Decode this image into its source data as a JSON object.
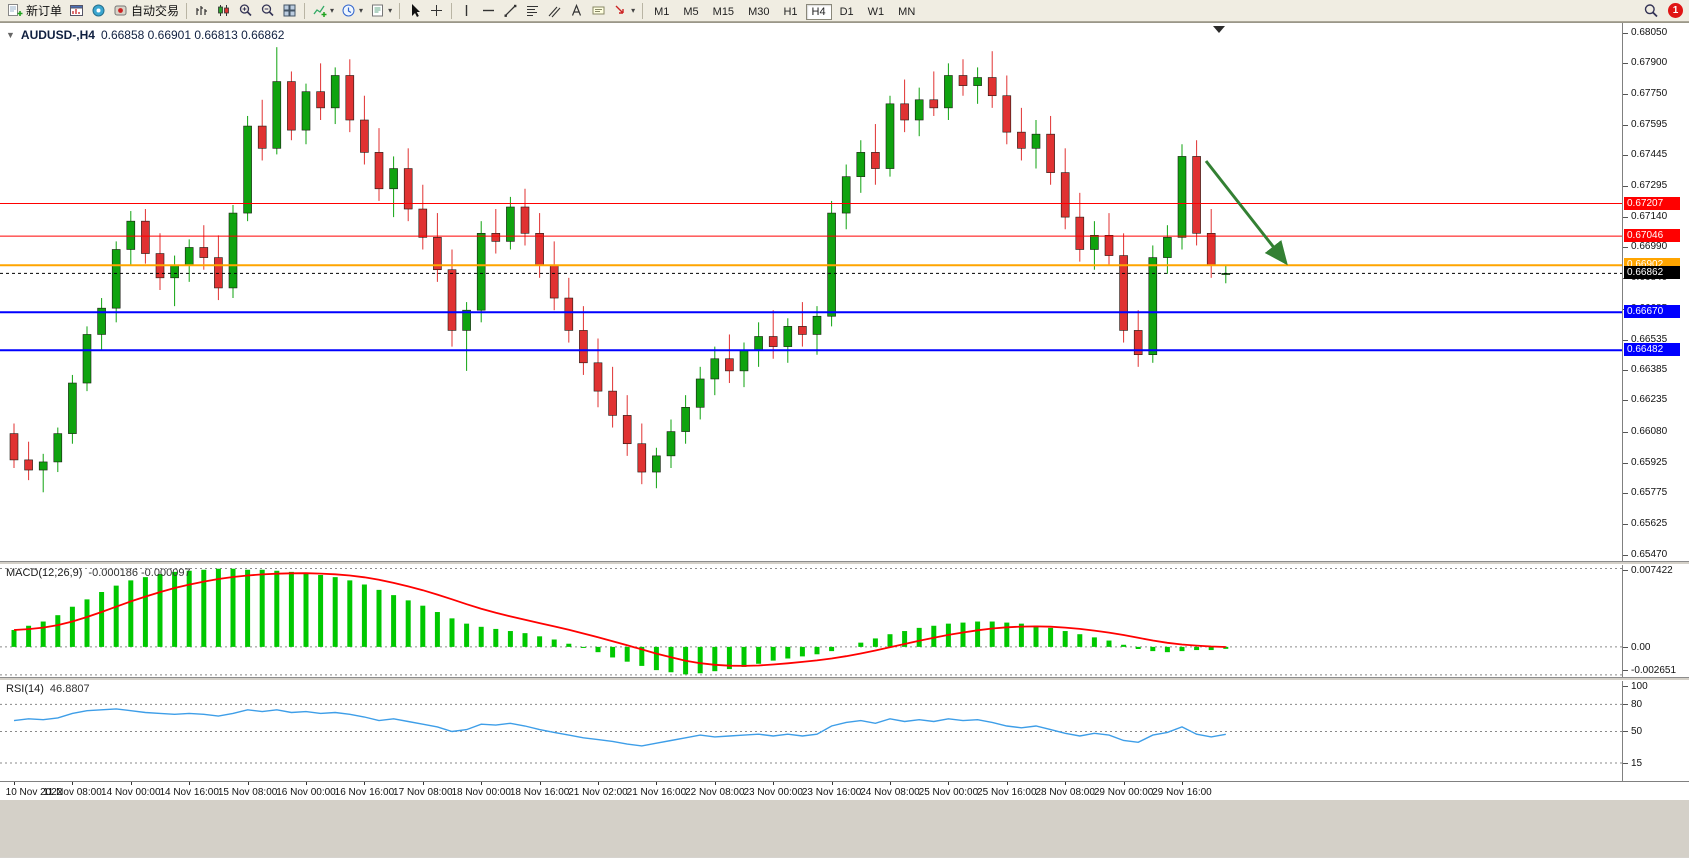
{
  "toolbar": {
    "new_order_label": "新订单",
    "autotrading_label": "自动交易",
    "timeframe_labels": [
      "M1",
      "M5",
      "M15",
      "M30",
      "H1",
      "H4",
      "D1",
      "W1",
      "MN"
    ],
    "active_timeframe": "H4",
    "notification_count": "1",
    "icons": [
      "new-order-icon",
      "chart-window-icon",
      "community-icon",
      "autotrading-icon",
      "bar-chart-icon",
      "candlestick-chart-icon",
      "zoom-in-icon",
      "zoom-out-icon",
      "tile-windows-icon",
      "indicators-icon",
      "periods-icon",
      "templates-icon",
      "cursor-icon",
      "crosshair-icon",
      "vertical-line-icon",
      "horizontal-line-icon",
      "trendline-icon",
      "fibonacci-icon",
      "channel-icon",
      "text-icon",
      "label-icon",
      "arrows-icon",
      "search-icon"
    ]
  },
  "chart": {
    "symbol_title": "AUDUSD-,H4",
    "ohlc_title": "0.66858 0.66901 0.66813 0.66862"
  },
  "indicators": {
    "macd": {
      "name": "MACD(12,26,9)",
      "values": "-0.000186 -0.000097"
    },
    "rsi": {
      "name": "RSI(14)",
      "value": "46.8807"
    }
  },
  "chart_data": [
    {
      "type": "candlestick",
      "title": "AUDUSD-,H4",
      "symbol": "AUDUSD-",
      "timeframe": "H4",
      "current_ohlc": {
        "open": "0.66858",
        "high": "0.66901",
        "low": "0.66813",
        "close": "0.66862"
      },
      "y_axis": {
        "min": 0.6547,
        "max": 0.6805,
        "ticks": [
          "0.68050",
          "0.67900",
          "0.67750",
          "0.67595",
          "0.67445",
          "0.67295",
          "0.67140",
          "0.66990",
          "0.66840",
          "0.66685",
          "0.66535",
          "0.66385",
          "0.66235",
          "0.66080",
          "0.65925",
          "0.65775",
          "0.65625",
          "0.65470"
        ]
      },
      "x_labels": [
        "10 Nov 2022",
        "11 Nov 08:00",
        "14 Nov 00:00",
        "14 Nov 16:00",
        "15 Nov 08:00",
        "16 Nov 00:00",
        "16 Nov 16:00",
        "17 Nov 08:00",
        "18 Nov 00:00",
        "18 Nov 16:00",
        "21 Nov 02:00",
        "21 Nov 16:00",
        "22 Nov 08:00",
        "23 Nov 00:00",
        "23 Nov 16:00",
        "24 Nov 08:00",
        "25 Nov 00:00",
        "25 Nov 16:00",
        "28 Nov 08:00",
        "29 Nov 00:00",
        "29 Nov 16:00"
      ],
      "label_step": 4,
      "candles": [
        [
          0.6607,
          0.6612,
          0.659,
          0.6594
        ],
        [
          0.6594,
          0.6603,
          0.6584,
          0.6589
        ],
        [
          0.6589,
          0.6597,
          0.6578,
          0.6593
        ],
        [
          0.6593,
          0.661,
          0.6588,
          0.6607
        ],
        [
          0.6607,
          0.6636,
          0.6602,
          0.6632
        ],
        [
          0.6632,
          0.666,
          0.6628,
          0.6656
        ],
        [
          0.6656,
          0.6674,
          0.6648,
          0.6669
        ],
        [
          0.6669,
          0.6702,
          0.6662,
          0.6698
        ],
        [
          0.6698,
          0.6717,
          0.669,
          0.6712
        ],
        [
          0.6712,
          0.6718,
          0.6691,
          0.6696
        ],
        [
          0.6696,
          0.6706,
          0.6678,
          0.6684
        ],
        [
          0.6684,
          0.6695,
          0.667,
          0.669
        ],
        [
          0.669,
          0.6703,
          0.6682,
          0.6699
        ],
        [
          0.6699,
          0.671,
          0.6688,
          0.6694
        ],
        [
          0.6694,
          0.6705,
          0.6673,
          0.6679
        ],
        [
          0.6679,
          0.672,
          0.6674,
          0.6716
        ],
        [
          0.6716,
          0.6764,
          0.6712,
          0.6759
        ],
        [
          0.6759,
          0.6772,
          0.6742,
          0.6748
        ],
        [
          0.6748,
          0.6798,
          0.6745,
          0.6781
        ],
        [
          0.6781,
          0.6786,
          0.6752,
          0.6757
        ],
        [
          0.6757,
          0.678,
          0.675,
          0.6776
        ],
        [
          0.6776,
          0.679,
          0.6762,
          0.6768
        ],
        [
          0.6768,
          0.6788,
          0.676,
          0.6784
        ],
        [
          0.6784,
          0.6792,
          0.6756,
          0.6762
        ],
        [
          0.6762,
          0.6774,
          0.674,
          0.6746
        ],
        [
          0.6746,
          0.6758,
          0.6722,
          0.6728
        ],
        [
          0.6728,
          0.6744,
          0.6714,
          0.6738
        ],
        [
          0.6738,
          0.6748,
          0.6712,
          0.6718
        ],
        [
          0.6718,
          0.673,
          0.6698,
          0.6704
        ],
        [
          0.6704,
          0.6716,
          0.6682,
          0.6688
        ],
        [
          0.6688,
          0.6698,
          0.665,
          0.6658
        ],
        [
          0.6658,
          0.6672,
          0.6638,
          0.6668
        ],
        [
          0.6668,
          0.6712,
          0.6662,
          0.6706
        ],
        [
          0.6706,
          0.6718,
          0.6696,
          0.6702
        ],
        [
          0.6702,
          0.6724,
          0.6698,
          0.6719
        ],
        [
          0.6719,
          0.6728,
          0.67,
          0.6706
        ],
        [
          0.6706,
          0.6716,
          0.6684,
          0.669
        ],
        [
          0.669,
          0.6702,
          0.6668,
          0.6674
        ],
        [
          0.6674,
          0.6684,
          0.6652,
          0.6658
        ],
        [
          0.6658,
          0.667,
          0.6636,
          0.6642
        ],
        [
          0.6642,
          0.6654,
          0.662,
          0.6628
        ],
        [
          0.6628,
          0.664,
          0.661,
          0.6616
        ],
        [
          0.6616,
          0.6626,
          0.6596,
          0.6602
        ],
        [
          0.6602,
          0.6612,
          0.6582,
          0.6588
        ],
        [
          0.6588,
          0.66,
          0.658,
          0.6596
        ],
        [
          0.6596,
          0.6614,
          0.659,
          0.6608
        ],
        [
          0.6608,
          0.6626,
          0.6602,
          0.662
        ],
        [
          0.662,
          0.664,
          0.6614,
          0.6634
        ],
        [
          0.6634,
          0.665,
          0.6626,
          0.6644
        ],
        [
          0.6644,
          0.6656,
          0.6632,
          0.6638
        ],
        [
          0.6638,
          0.6652,
          0.663,
          0.6648
        ],
        [
          0.6648,
          0.6662,
          0.664,
          0.6655
        ],
        [
          0.6655,
          0.6668,
          0.6644,
          0.665
        ],
        [
          0.665,
          0.6664,
          0.6642,
          0.666
        ],
        [
          0.666,
          0.6672,
          0.665,
          0.6656
        ],
        [
          0.6656,
          0.667,
          0.6646,
          0.6665
        ],
        [
          0.6665,
          0.6722,
          0.666,
          0.6716
        ],
        [
          0.6716,
          0.674,
          0.6708,
          0.6734
        ],
        [
          0.6734,
          0.6752,
          0.6726,
          0.6746
        ],
        [
          0.6746,
          0.676,
          0.673,
          0.6738
        ],
        [
          0.6738,
          0.6774,
          0.6734,
          0.677
        ],
        [
          0.677,
          0.6782,
          0.6756,
          0.6762
        ],
        [
          0.6762,
          0.6778,
          0.6754,
          0.6772
        ],
        [
          0.6772,
          0.6786,
          0.6764,
          0.6768
        ],
        [
          0.6768,
          0.679,
          0.6762,
          0.6784
        ],
        [
          0.6784,
          0.6792,
          0.6774,
          0.6779
        ],
        [
          0.6779,
          0.6788,
          0.677,
          0.6783
        ],
        [
          0.6783,
          0.6796,
          0.6768,
          0.6774
        ],
        [
          0.6774,
          0.6784,
          0.675,
          0.6756
        ],
        [
          0.6756,
          0.6768,
          0.6742,
          0.6748
        ],
        [
          0.6748,
          0.6762,
          0.6738,
          0.6755
        ],
        [
          0.6755,
          0.6764,
          0.673,
          0.6736
        ],
        [
          0.6736,
          0.6748,
          0.6708,
          0.6714
        ],
        [
          0.6714,
          0.6726,
          0.6692,
          0.6698
        ],
        [
          0.6698,
          0.6712,
          0.6688,
          0.6705
        ],
        [
          0.6705,
          0.6716,
          0.669,
          0.6695
        ],
        [
          0.6695,
          0.6706,
          0.6652,
          0.6658
        ],
        [
          0.6658,
          0.6668,
          0.664,
          0.6646
        ],
        [
          0.6646,
          0.67,
          0.6642,
          0.6694
        ],
        [
          0.6694,
          0.671,
          0.6686,
          0.6704
        ],
        [
          0.6704,
          0.675,
          0.6698,
          0.6744
        ],
        [
          0.6744,
          0.6752,
          0.67,
          0.6706
        ],
        [
          0.6706,
          0.6718,
          0.6684,
          0.669
        ],
        [
          0.66858,
          0.66901,
          0.66813,
          0.66862
        ]
      ],
      "h_lines": [
        {
          "price": 0.67207,
          "label": "0.67207",
          "color": "#FF0000",
          "line_width": 1
        },
        {
          "price": 0.67046,
          "label": "0.67046",
          "color": "#FF0000",
          "line_width": 1
        },
        {
          "price": 0.66902,
          "label": "0.66902",
          "color": "#FFA500",
          "line_width": 2
        },
        {
          "price": 0.6667,
          "label": "0.66670",
          "color": "#0000FF",
          "line_width": 2
        },
        {
          "price": 0.66482,
          "label": "0.66482",
          "color": "#0000FF",
          "line_width": 2
        }
      ],
      "bid_line": {
        "price": 0.66862,
        "label": "0.66862",
        "color": "#000000"
      },
      "annotation_arrow": {
        "from": [
          1206,
          138
        ],
        "to": [
          1286,
          240
        ],
        "color": "#338033"
      },
      "colors": {
        "up": "#0FA30F",
        "down": "#E03232",
        "outline": "#1b1b14"
      }
    },
    {
      "type": "bar",
      "name": "MACD",
      "params": "12,26,9",
      "label": "MACD(12,26,9) -0.000186 -0.000097",
      "current_values": [
        -0.000186,
        -9.7e-05
      ],
      "range": {
        "min": -0.00285,
        "max": 0.00775
      },
      "y_tick_values": [
        0.007422,
        0,
        -0.002651
      ],
      "y_tick_labels": [
        "0.007422",
        "0.00",
        "-0.002651"
      ],
      "colors": {
        "histogram": "#00C800",
        "signal": "#FF0000"
      },
      "values": [
        0.0016,
        0.002,
        0.0024,
        0.003,
        0.0038,
        0.0045,
        0.0052,
        0.0058,
        0.0063,
        0.0066,
        0.0069,
        0.0071,
        0.0072,
        0.0073,
        0.0074,
        0.0074,
        0.0073,
        0.0073,
        0.0072,
        0.0071,
        0.007,
        0.0068,
        0.0066,
        0.0063,
        0.0059,
        0.0054,
        0.0049,
        0.0044,
        0.0039,
        0.0033,
        0.0027,
        0.0022,
        0.0019,
        0.0017,
        0.0015,
        0.0013,
        0.001,
        0.0007,
        0.0003,
        -0.0001,
        -0.0005,
        -0.001,
        -0.0014,
        -0.0018,
        -0.0022,
        -0.0024,
        -0.0026,
        -0.0025,
        -0.0023,
        -0.0021,
        -0.0019,
        -0.0016,
        -0.0013,
        -0.0011,
        -0.0009,
        -0.0007,
        -0.0004,
        0.0,
        0.0004,
        0.0008,
        0.0012,
        0.0015,
        0.0018,
        0.002,
        0.0022,
        0.0023,
        0.0024,
        0.0024,
        0.0023,
        0.0022,
        0.002,
        0.0018,
        0.0015,
        0.0012,
        0.0009,
        0.0006,
        0.0002,
        -0.0002,
        -0.0004,
        -0.0005,
        -0.0004,
        -0.0003,
        -0.0003,
        -0.000186
      ]
    },
    {
      "type": "line",
      "name": "RSI",
      "params": "14",
      "label": "RSI(14) 46.8807",
      "current_value": 46.8807,
      "range": {
        "min": -5,
        "max": 106
      },
      "levels": [
        80,
        50,
        15
      ],
      "y_tick_values": [
        100,
        80,
        50,
        15
      ],
      "y_tick_labels": [
        "100",
        "80",
        "50",
        "15"
      ],
      "color": "#3E9EE8",
      "values": [
        62,
        64,
        63,
        65,
        70,
        73,
        74,
        75,
        73,
        71,
        70,
        69,
        70,
        69,
        67,
        70,
        74,
        72,
        74,
        71,
        72,
        70,
        71,
        69,
        66,
        62,
        64,
        61,
        58,
        55,
        50,
        52,
        58,
        57,
        59,
        56,
        52,
        49,
        46,
        43,
        41,
        39,
        36,
        34,
        37,
        40,
        43,
        46,
        44,
        45,
        46,
        47,
        45,
        47,
        45,
        47,
        56,
        60,
        62,
        59,
        64,
        61,
        63,
        61,
        64,
        62,
        63,
        60,
        56,
        54,
        56,
        52,
        48,
        45,
        48,
        46,
        40,
        38,
        46,
        49,
        55,
        47,
        44,
        46.88
      ]
    }
  ]
}
